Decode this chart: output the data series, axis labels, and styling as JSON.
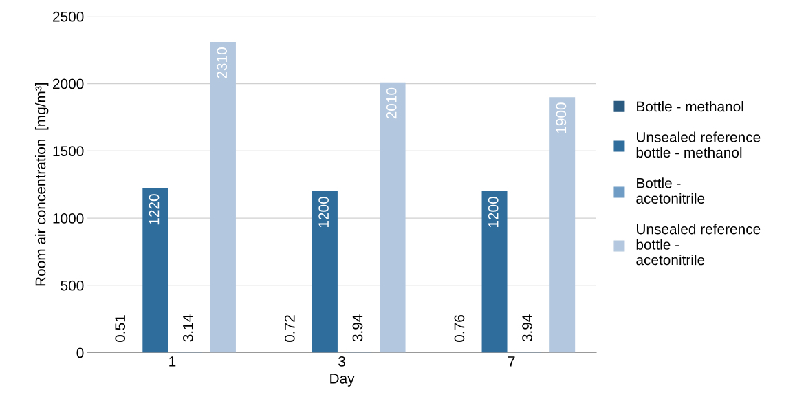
{
  "chart_data": {
    "type": "bar",
    "xlabel": "Day",
    "ylabel": "Room air concentration  [mg/m³]",
    "categories": [
      "1",
      "3",
      "7"
    ],
    "series": [
      {
        "name": "Bottle - methanol",
        "color": "#2a5a80",
        "values": [
          0.51,
          0.72,
          0.76
        ]
      },
      {
        "name": "Unsealed reference bottle - methanol",
        "color": "#2f6d9c",
        "values": [
          1220,
          1200,
          1200
        ]
      },
      {
        "name": "Bottle - acetonitrile",
        "color": "#6f9cc4",
        "values": [
          3.14,
          3.94,
          3.94
        ]
      },
      {
        "name": "Unsealed reference bottle - acetonitrile",
        "color": "#b3c7de",
        "values": [
          2310,
          2010,
          1900
        ]
      }
    ],
    "ylim": [
      0,
      2500
    ],
    "yticks": [
      0,
      500,
      1000,
      1500,
      2000,
      2500
    ],
    "grid": "y",
    "legend": "right",
    "data_labels": true
  }
}
